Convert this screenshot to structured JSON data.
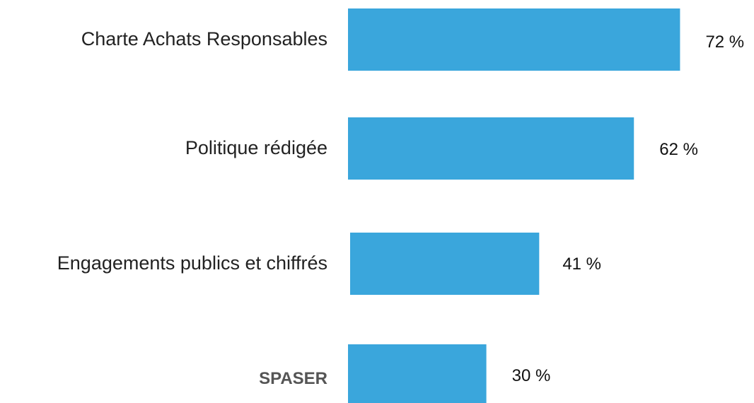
{
  "chart_data": {
    "type": "bar",
    "orientation": "horizontal",
    "categories": [
      "Charte Achats Responsables",
      "Politique rédigée",
      "Engagements publics et chiffrés",
      "SPASER"
    ],
    "values": [
      72,
      62,
      41,
      30
    ],
    "value_labels": [
      "72 %",
      "62 %",
      "41 %",
      "30 %"
    ],
    "bold_categories": [
      "SPASER"
    ],
    "bar_color": "#3AA6DC",
    "title": "",
    "xlabel": "",
    "ylabel": "",
    "grid": false,
    "legend": "none"
  }
}
